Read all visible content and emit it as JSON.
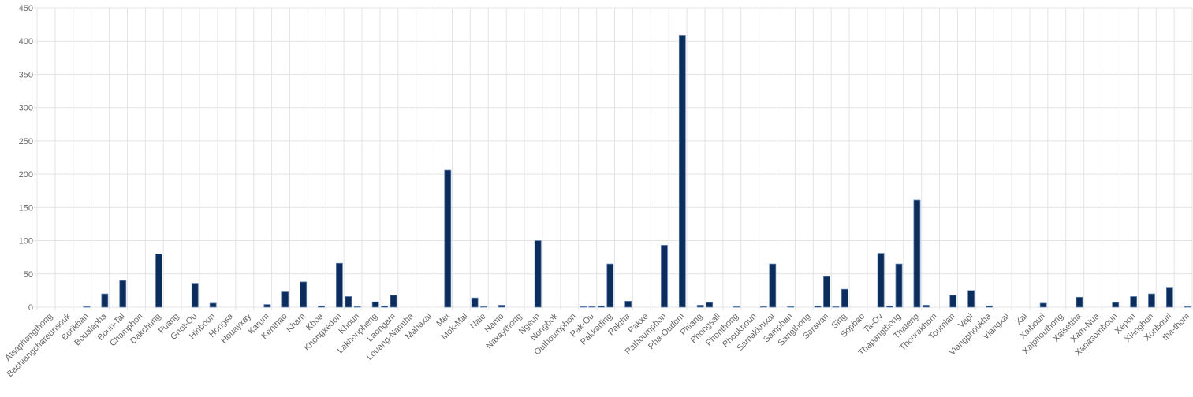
{
  "chart_data": {
    "type": "bar",
    "color": "#0c2d5c",
    "categories": [
      null,
      "Atsaphangthong",
      null,
      "Bachiangchareunsouk",
      null,
      "Borikhan",
      null,
      "Boualapha",
      null,
      "Boun-Tai",
      null,
      "Champhon",
      null,
      "Dakchung",
      null,
      "Fuang",
      null,
      "Gnot-Ou",
      null,
      "Hinboun",
      null,
      "Hongsa",
      null,
      "Houayxay",
      null,
      "Karum",
      null,
      "Kenthao",
      null,
      "Kham",
      null,
      "Khoa",
      null,
      "Khongxedon",
      null,
      "Khoun",
      null,
      "Lakhonpheng",
      null,
      "Laongam",
      null,
      "Louang-Namtha",
      null,
      "Mahaxai",
      null,
      "Met",
      null,
      "Mok-Mai",
      null,
      "Nale",
      null,
      "Namo",
      null,
      "Naxaythong",
      null,
      "Ngeun",
      null,
      "Nongbok",
      null,
      "Outhoumphon",
      null,
      "Pak-Ou",
      null,
      "Pakkading",
      null,
      "Paktha",
      null,
      "Pakxe",
      null,
      "Pathoumphon",
      null,
      "Pha-Oudom",
      null,
      "Phiang",
      null,
      "Phongsali",
      null,
      "Phonthong",
      null,
      "Phoukhoun",
      null,
      "Samakkhixai",
      null,
      "Samphan",
      null,
      "Sangthong",
      null,
      "Saravan",
      null,
      "Sing",
      null,
      "Sopbao",
      null,
      "Ta-Oy",
      null,
      "Thapangthong",
      null,
      "Thateng",
      null,
      "Thourakhom",
      null,
      "Toumlan",
      null,
      "Vapi",
      null,
      "Viangphoukha",
      null,
      "Viangxai",
      null,
      "Xai",
      null,
      "Xaibouri",
      null,
      "Xaiphouthong",
      null,
      "Xaisettha",
      null,
      "Xam-Nua",
      null,
      "Xanasomboun",
      null,
      "Xepon",
      null,
      "Xianghon",
      null,
      "Xonbouri",
      null,
      "tha-thom"
    ],
    "values": [
      0,
      0,
      0,
      0,
      0,
      1,
      0,
      20,
      0,
      40,
      0,
      0,
      0,
      80,
      0,
      0,
      0,
      36,
      0,
      6,
      0,
      0,
      0,
      0,
      0,
      4,
      0,
      23,
      0,
      38,
      0,
      2,
      0,
      66,
      16,
      1,
      0,
      8,
      2,
      18,
      0,
      0,
      0,
      0,
      0,
      206,
      0,
      0,
      14,
      1,
      0,
      3,
      0,
      0,
      0,
      100,
      0,
      0,
      0,
      0,
      1,
      1,
      2,
      65,
      0,
      9,
      0,
      0,
      0,
      93,
      0,
      408,
      0,
      3,
      7,
      0,
      0,
      1,
      0,
      0,
      1,
      65,
      0,
      1,
      0,
      0,
      2,
      46,
      1,
      27,
      0,
      0,
      0,
      81,
      2,
      65,
      0,
      161,
      3,
      0,
      0,
      18,
      0,
      25,
      0,
      2,
      0,
      0,
      0,
      0,
      0,
      6,
      0,
      0,
      0,
      15,
      0,
      0,
      0,
      7,
      0,
      16,
      0,
      20,
      0,
      30,
      0,
      1
    ],
    "ylim": [
      0,
      450
    ],
    "yticks": [
      0,
      50,
      100,
      150,
      200,
      250,
      300,
      350,
      400,
      450
    ],
    "grid": true
  }
}
